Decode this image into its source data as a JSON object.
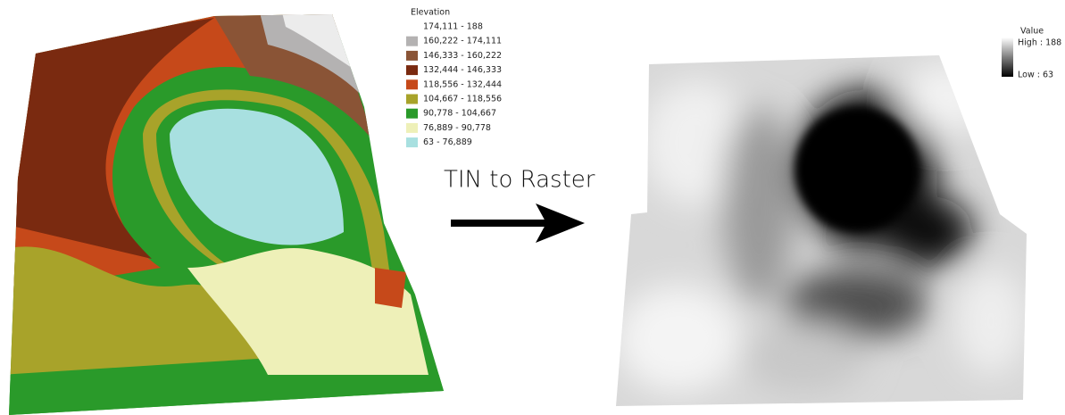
{
  "left_map": {
    "legend": {
      "title": "Elevation",
      "classes": [
        {
          "label": "174,111 - 188",
          "color": "#ffffff"
        },
        {
          "label": "160,222 - 174,111",
          "color": "#b4b2b2"
        },
        {
          "label": "146,333 - 160,222",
          "color": "#8a5436"
        },
        {
          "label": "132,444 - 146,333",
          "color": "#7a2a10"
        },
        {
          "label": "118,556 - 132,444",
          "color": "#c6491a"
        },
        {
          "label": "104,667 - 118,556",
          "color": "#a8a32a"
        },
        {
          "label": "90,778 - 104,667",
          "color": "#2a9a2a"
        },
        {
          "label": "76,889 - 90,778",
          "color": "#eef0b8"
        },
        {
          "label": "63 - 76,889",
          "color": "#a8e0e0"
        }
      ]
    }
  },
  "arrow": {
    "label": "TIN to Raster"
  },
  "right_map": {
    "legend": {
      "title": "Value",
      "high": "High : 188",
      "low": "Low : 63"
    }
  }
}
